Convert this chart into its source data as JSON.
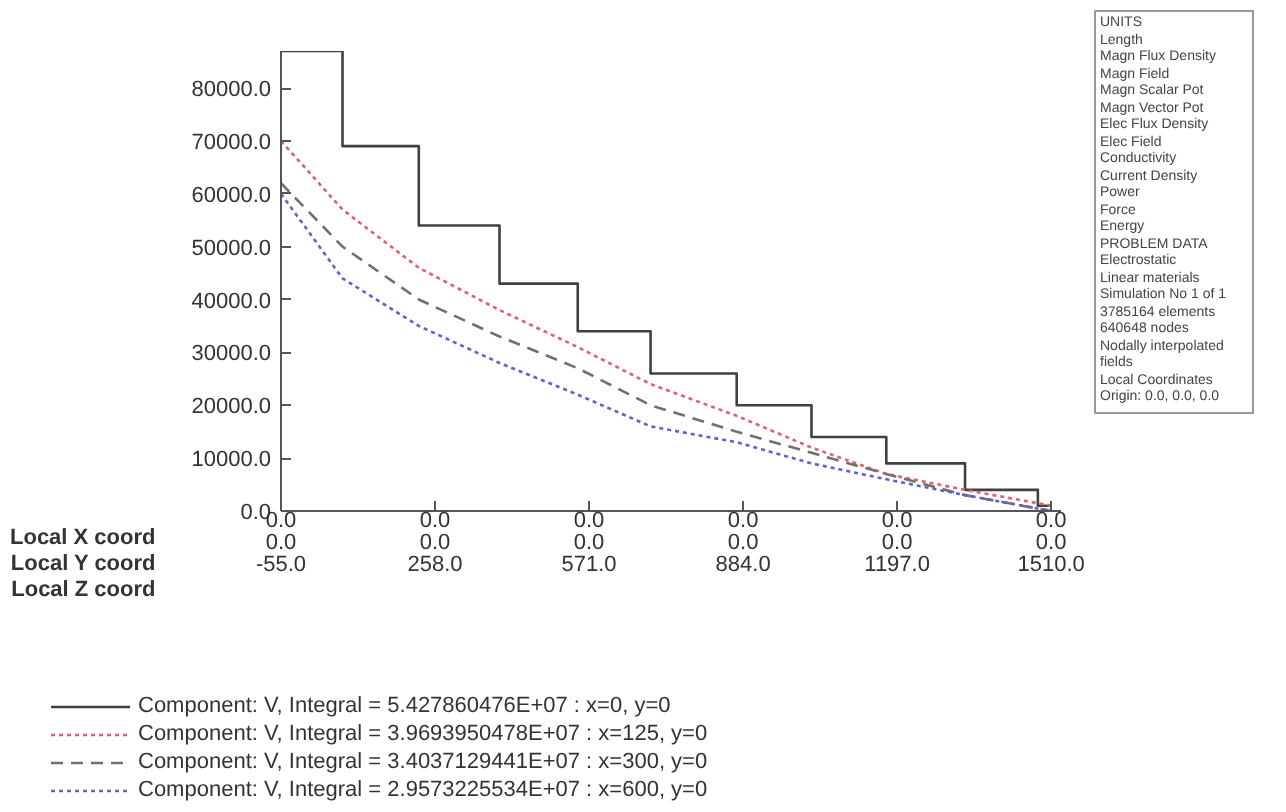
{
  "chart_data": {
    "type": "line",
    "xlim": [
      -55,
      1530
    ],
    "ylim": [
      0,
      87000
    ],
    "xticks": [
      {
        "value": -55,
        "label": "-55.0"
      },
      {
        "value": 258,
        "label": "258.0"
      },
      {
        "value": 571,
        "label": "571.0"
      },
      {
        "value": 884,
        "label": "884.0"
      },
      {
        "value": 1197,
        "label": "1197.0"
      },
      {
        "value": 1510,
        "label": "1510.0"
      }
    ],
    "yticks": [
      {
        "value": 0,
        "label": "0.0"
      },
      {
        "value": 10000,
        "label": "10000.0"
      },
      {
        "value": 20000,
        "label": "20000.0"
      },
      {
        "value": 30000,
        "label": "30000.0"
      },
      {
        "value": 40000,
        "label": "40000.0"
      },
      {
        "value": 50000,
        "label": "50000.0"
      },
      {
        "value": 60000,
        "label": "60000.0"
      },
      {
        "value": 70000,
        "label": "70000.0"
      },
      {
        "value": 80000,
        "label": "80000.0"
      }
    ],
    "grid": false,
    "legend": "bottom left",
    "series": [
      {
        "name": "Component: V, Integral = 5.427860476E+07 : x=0, y=0",
        "type": "step",
        "color": "#404040",
        "line_style": "solid",
        "x": [
          -55,
          70,
          225,
          389,
          548,
          696,
          871,
          1023,
          1175,
          1335,
          1483,
          1510
        ],
        "values": [
          87000,
          69000,
          54000,
          43000,
          34000,
          26000,
          20000,
          14000,
          9000,
          4000,
          1000,
          1000
        ]
      },
      {
        "name": "Component: V, Integral = 3.9693950478E+07 : x=125, y=0",
        "color": "#e06070",
        "line_style": "dotted",
        "x": [
          -55,
          70,
          225,
          389,
          548,
          696,
          871,
          1023,
          1175,
          1335,
          1510
        ],
        "values": [
          70000,
          57000,
          46000,
          38000,
          31000,
          24000,
          18000,
          12000,
          7000,
          4000,
          1000
        ]
      },
      {
        "name": "Component: V, Integral = 3.4037129441E+07 : x=300, y=0",
        "color": "#707070",
        "line_style": "dashed",
        "x": [
          -55,
          70,
          225,
          389,
          548,
          696,
          871,
          1023,
          1175,
          1335,
          1510
        ],
        "values": [
          62000,
          50000,
          40000,
          33000,
          27000,
          20000,
          15000,
          11000,
          7000,
          3000,
          0
        ]
      },
      {
        "name": "Component: V, Integral = 2.9573225534E+07 : x=600, y=0",
        "color": "#6060d0",
        "line_style": "dotted",
        "x": [
          -55,
          70,
          225,
          389,
          548,
          696,
          871,
          1023,
          1175,
          1335,
          1510
        ],
        "values": [
          60000,
          44000,
          35000,
          28000,
          22000,
          16000,
          13000,
          9000,
          6000,
          3000,
          0
        ]
      }
    ],
    "annotations": [
      "Local X coord",
      "Local Y coord",
      "Local Z coord",
      "0.0",
      "0.0",
      "0.0",
      "0.0",
      "0.0",
      "0.0",
      "0.0",
      "0.0",
      "0.0",
      "0.0",
      "0.0",
      "0.0",
      "UNITS",
      "Length",
      "Magn Flux Density",
      "Magn Field",
      "Magn Scalar Pot",
      "Magn Vector Pot",
      "Elec Flux Density",
      "Elec Field",
      "Conductivity",
      "Current Density",
      "Power",
      "Force",
      "Energy",
      "PROBLEM DATA",
      "Electrostatic",
      "Linear materials",
      "Simulation No 1 of 1",
      "3785164 elements",
      "640648 nodes",
      "Nodally interpolated fields",
      "Local Coordinates",
      "Origin: 0.0, 0.0, 0.0"
    ]
  }
}
